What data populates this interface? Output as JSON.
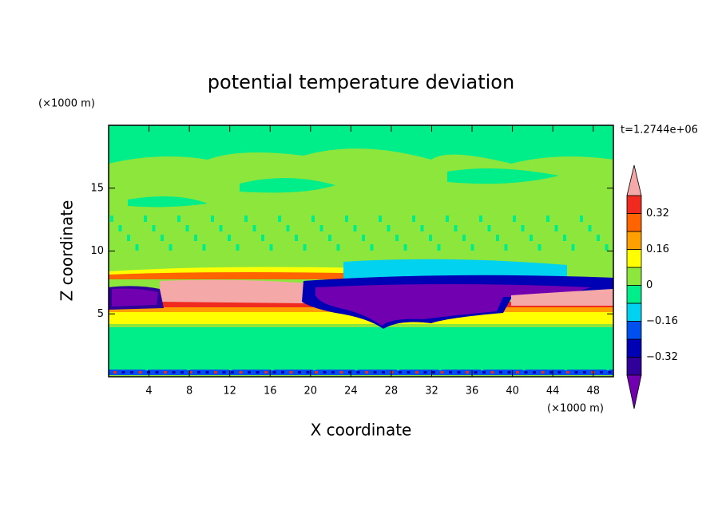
{
  "chart_data": {
    "type": "contour",
    "title": "potential temperature deviation",
    "x_label": "X coordinate",
    "y_label": "Z coordinate",
    "x_unit": "(×1000 m)",
    "y_unit": "(×1000 m)",
    "annotation": "t=1.2744e+06",
    "xlim": [
      0,
      50
    ],
    "ylim": [
      0,
      20
    ],
    "xticks": [
      4,
      8,
      12,
      16,
      20,
      24,
      28,
      32,
      36,
      40,
      44,
      48
    ],
    "yticks": [
      5,
      10,
      15
    ],
    "levels": [
      -0.4,
      -0.32,
      -0.24,
      -0.16,
      -0.08,
      0,
      0.08,
      0.16,
      0.24,
      0.32,
      0.4
    ],
    "colors": [
      "#7000b0",
      "#30009a",
      "#0000b4",
      "#0050f0",
      "#00d2f0",
      "#00ee8a",
      "#8ce63c",
      "#ffff00",
      "#ffa000",
      "#ff6400",
      "#f02a1e",
      "#f4a8a8"
    ],
    "colorbar_ticks": [
      {
        "value": -0.32,
        "label": "−0.32"
      },
      {
        "value": -0.16,
        "label": "−0.16"
      },
      0,
      0.16,
      0.32
    ]
  }
}
